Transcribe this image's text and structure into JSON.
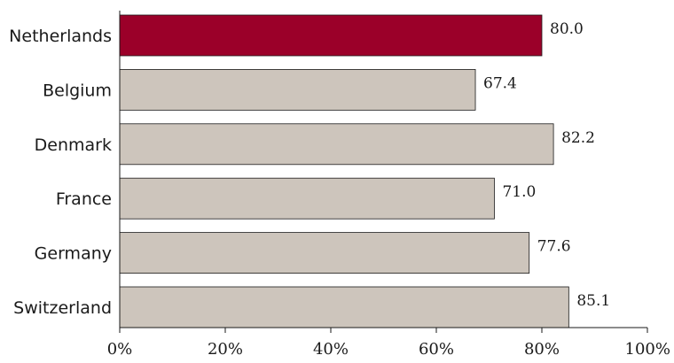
{
  "chart_data": {
    "type": "bar",
    "orientation": "horizontal",
    "categories": [
      "Netherlands",
      "Belgium",
      "Denmark",
      "France",
      "Germany",
      "Switzerland"
    ],
    "values": [
      80.0,
      67.4,
      82.2,
      71.0,
      77.6,
      85.1
    ],
    "value_labels": [
      "80.0",
      "67.4",
      "82.2",
      "71.0",
      "77.6",
      "85.1"
    ],
    "highlight_index": 0,
    "xlim": [
      0,
      100
    ],
    "x_ticks": [
      0,
      20,
      40,
      60,
      80,
      100
    ],
    "x_tick_labels": [
      "0%",
      "20%",
      "40%",
      "60%",
      "80%",
      "100%"
    ],
    "colors": {
      "highlight": "#9b0029",
      "default": "#cdc5bc",
      "axis": "#1a1a1a"
    },
    "grid": false,
    "legend": "none"
  }
}
